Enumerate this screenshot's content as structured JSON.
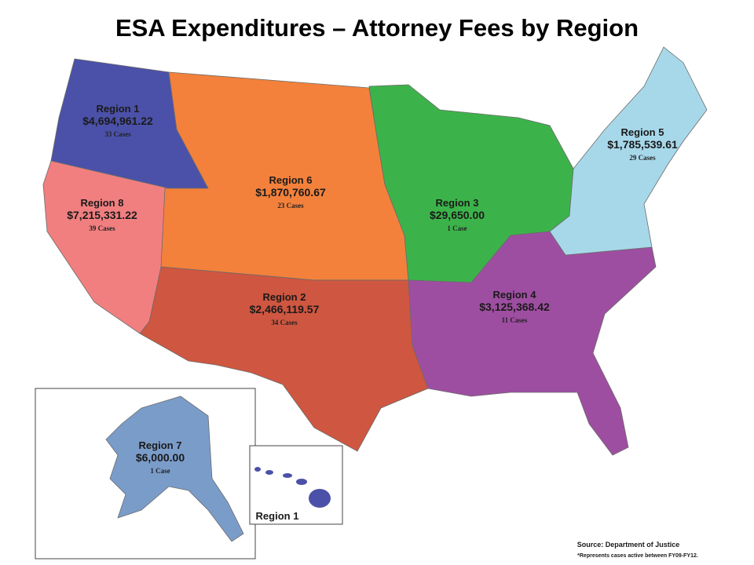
{
  "title": "ESA Expenditures – Attorney Fees by Region",
  "regions": [
    {
      "name": "Region 1",
      "amount": "$4,694,961.22",
      "cases": "33 Cases"
    },
    {
      "name": "Region 6",
      "amount": "$1,870,760.67",
      "cases": "23 Cases"
    },
    {
      "name": "Region 8",
      "amount": "$7,215,331.22",
      "cases": "39 Cases"
    },
    {
      "name": "Region 2",
      "amount": "$2,466,119.57",
      "cases": "34 Cases"
    },
    {
      "name": "Region 3",
      "amount": "$29,650.00",
      "cases": "1 Case"
    },
    {
      "name": "Region 4",
      "amount": "$3,125,368.42",
      "cases": "11 Cases"
    },
    {
      "name": "Region 5",
      "amount": "$1,785,539.61",
      "cases": "29 Cases"
    },
    {
      "name": "Region 7",
      "amount": "$6,000.00",
      "cases": "1 Case"
    }
  ],
  "hawaii_label": "Region 1",
  "source": "Source: Department of Justice",
  "note": "*Represents cases active between FY09-FY12."
}
